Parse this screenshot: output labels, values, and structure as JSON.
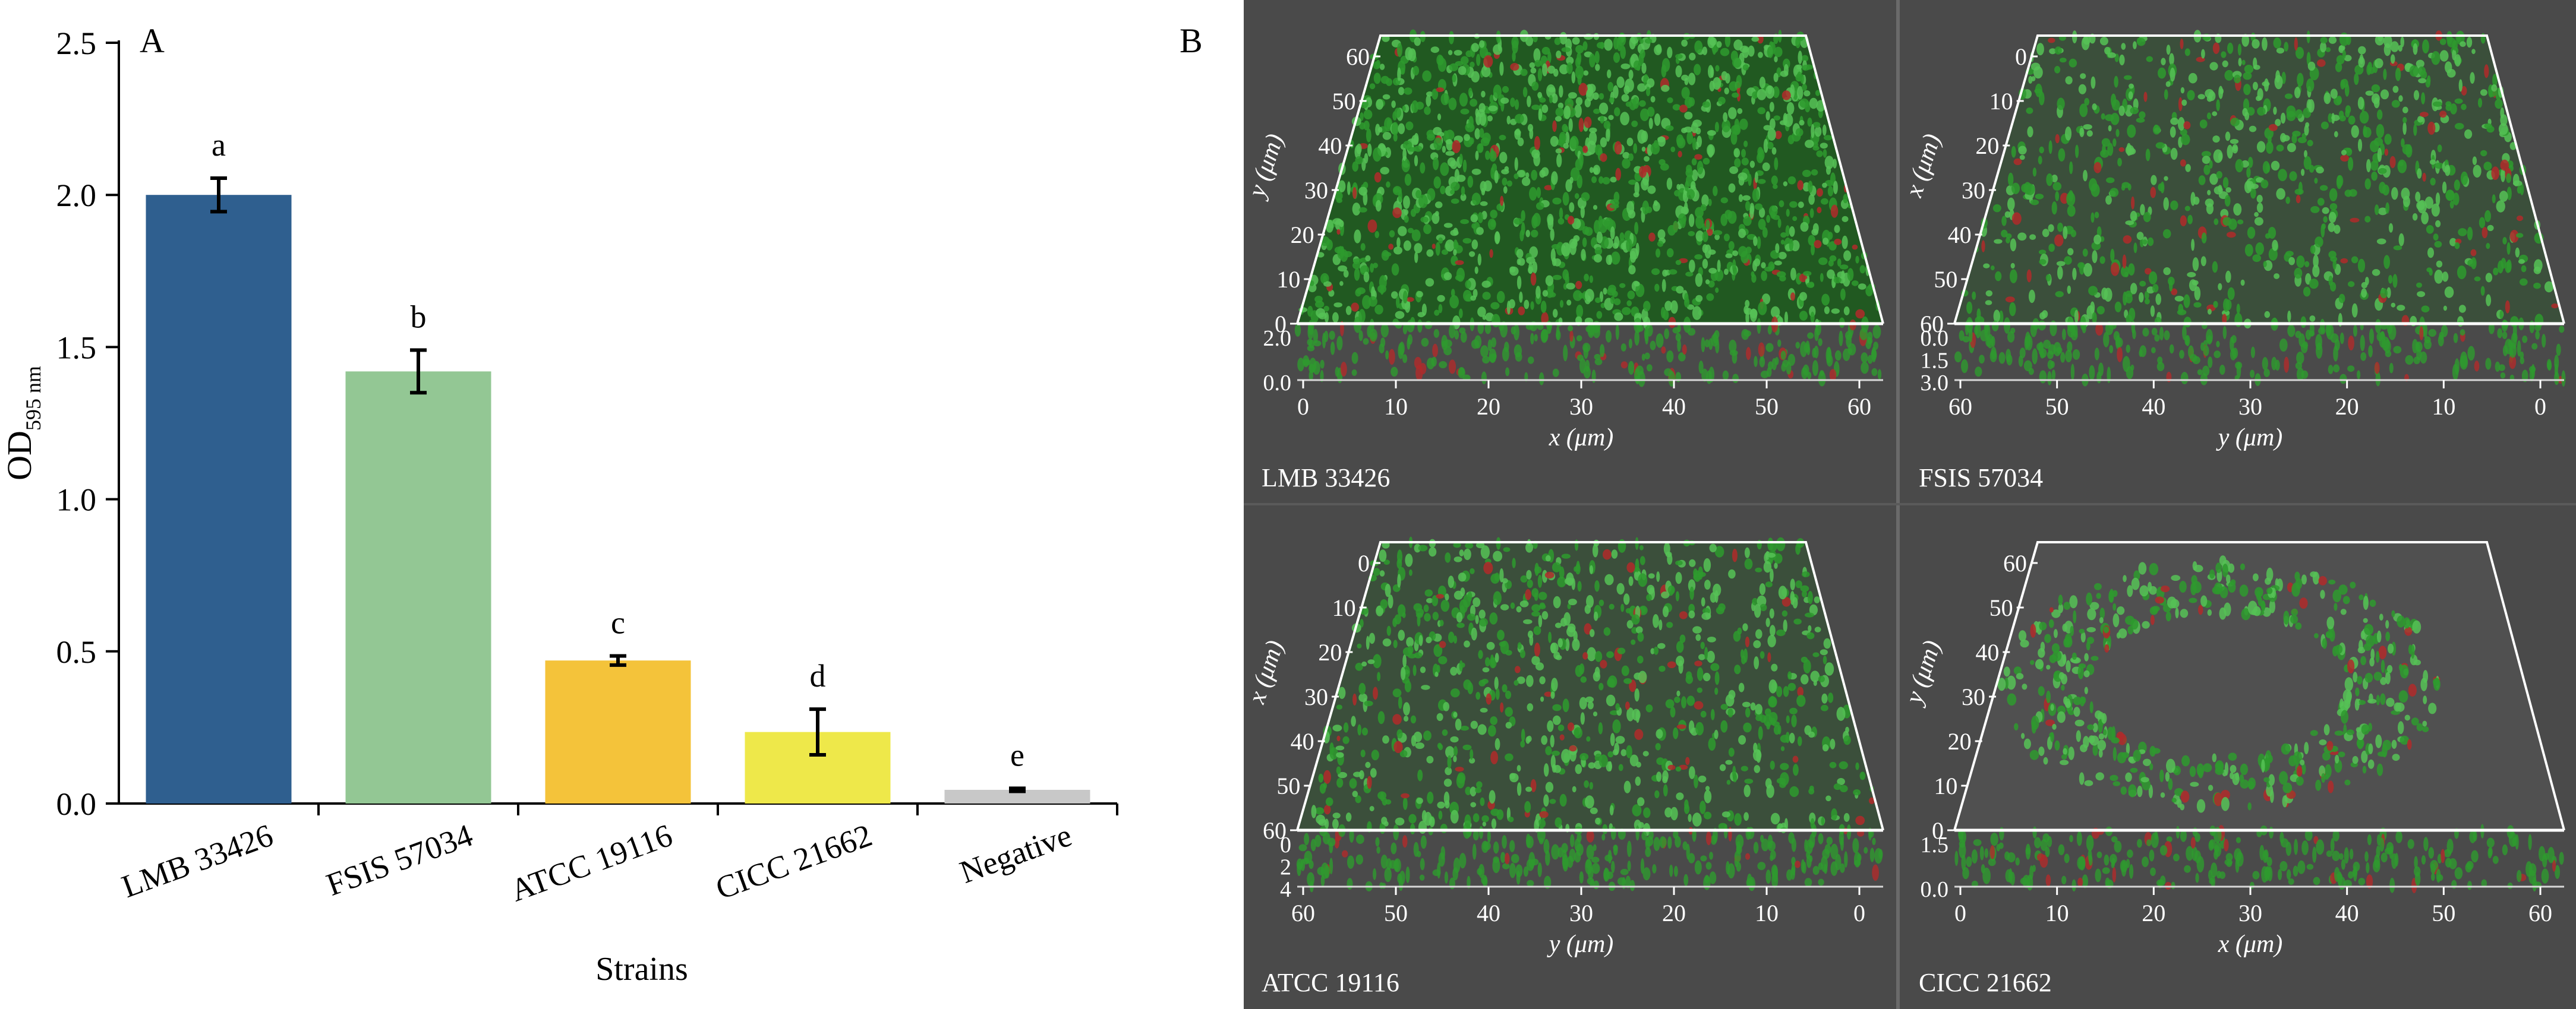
{
  "panel_a_label": "A",
  "panel_b_label": "B",
  "chart_data": {
    "type": "bar",
    "categories": [
      "LMB 33426",
      "FSIS 57034",
      "ATCC 19116",
      "CICC 21662",
      "Negative"
    ],
    "values": [
      2.0,
      1.42,
      0.47,
      0.235,
      0.045
    ],
    "errors": [
      0.055,
      0.07,
      0.015,
      0.075,
      0.005
    ],
    "significance_letters": [
      "a",
      "b",
      "c",
      "d",
      "e"
    ],
    "bar_colors": [
      "#2f5f8f",
      "#93c794",
      "#f4c33a",
      "#eee84a",
      "#c8c8c8"
    ],
    "xlabel": "Strains",
    "ylabel_main": "OD",
    "ylabel_sub": "595 nm",
    "ylim": [
      0,
      2.5
    ],
    "yticks": [
      0.0,
      0.5,
      1.0,
      1.5,
      2.0,
      2.5
    ],
    "ytick_labels": [
      "0.0",
      "0.5",
      "1.0",
      "1.5",
      "2.0",
      "2.5"
    ],
    "grid": false,
    "legend": "none"
  },
  "micrographs": {
    "background_color": "#4a4a4a",
    "biofilm_color": "#2e9a2e",
    "dead_cell_color": "#b02a2a",
    "panels": [
      {
        "strain": "LMB 33426",
        "vertical_axis_label": "y (μm)",
        "vertical_ticks": [
          "60",
          "50",
          "40",
          "30",
          "20",
          "10",
          "0"
        ],
        "depth_ticks": [
          "2.0",
          "0.0"
        ],
        "horizontal_axis_label": "x (μm)",
        "horizontal_ticks": [
          "0",
          "10",
          "20",
          "30",
          "40",
          "50",
          "60"
        ]
      },
      {
        "strain": "FSIS 57034",
        "vertical_axis_label": "x (μm)",
        "vertical_ticks": [
          "0",
          "10",
          "20",
          "30",
          "40",
          "50",
          "60"
        ],
        "depth_ticks": [
          "0.0",
          "1.5",
          "3.0"
        ],
        "horizontal_axis_label": "y (μm)",
        "horizontal_ticks": [
          "60",
          "50",
          "40",
          "30",
          "20",
          "10",
          "0"
        ]
      },
      {
        "strain": "ATCC 19116",
        "vertical_axis_label": "x (μm)",
        "vertical_ticks": [
          "0",
          "10",
          "20",
          "30",
          "40",
          "50",
          "60"
        ],
        "depth_ticks": [
          "0",
          "2",
          "4"
        ],
        "horizontal_axis_label": "y (μm)",
        "horizontal_ticks": [
          "60",
          "50",
          "40",
          "30",
          "20",
          "10",
          "0"
        ]
      },
      {
        "strain": "CICC 21662",
        "vertical_axis_label": "y (μm)",
        "vertical_ticks": [
          "60",
          "50",
          "40",
          "30",
          "20",
          "10",
          "0"
        ],
        "depth_ticks": [
          "1.5",
          "0.0"
        ],
        "horizontal_axis_label": "x (μm)",
        "horizontal_ticks": [
          "0",
          "10",
          "20",
          "30",
          "40",
          "50",
          "60"
        ]
      }
    ]
  }
}
